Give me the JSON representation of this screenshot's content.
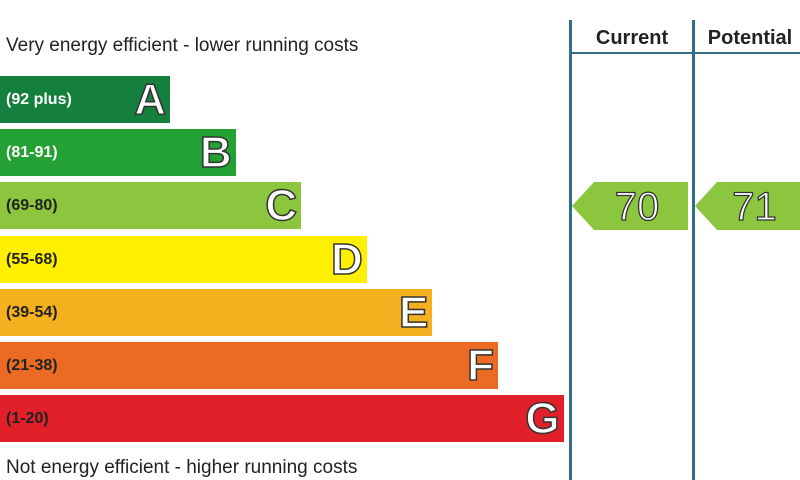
{
  "chart_data": {
    "type": "bar",
    "top_caption": "Very energy efficient - lower running costs",
    "bottom_caption": "Not energy efficient - higher running costs",
    "bands": [
      {
        "letter": "A",
        "range": "(92 plus)",
        "color": "#15803d",
        "range_color": "#ffffff"
      },
      {
        "letter": "B",
        "range": "(81-91)",
        "color": "#23a135",
        "range_color": "#ffffff"
      },
      {
        "letter": "C",
        "range": "(69-80)",
        "color": "#8cc63e",
        "range_color": "#222222"
      },
      {
        "letter": "D",
        "range": "(55-68)",
        "color": "#fff000",
        "range_color": "#222222"
      },
      {
        "letter": "E",
        "range": "(39-54)",
        "color": "#f4b01f",
        "range_color": "#222222"
      },
      {
        "letter": "F",
        "range": "(21-38)",
        "color": "#ec6b24",
        "range_color": "#222222"
      },
      {
        "letter": "G",
        "range": "(1-20)",
        "color": "#e2202a",
        "range_color": "#222222"
      }
    ],
    "columns": [
      {
        "label": "Current",
        "value": 70,
        "band": "C",
        "color": "#8cc63e"
      },
      {
        "label": "Potential",
        "value": 71,
        "band": "C",
        "color": "#8cc63e"
      }
    ]
  }
}
